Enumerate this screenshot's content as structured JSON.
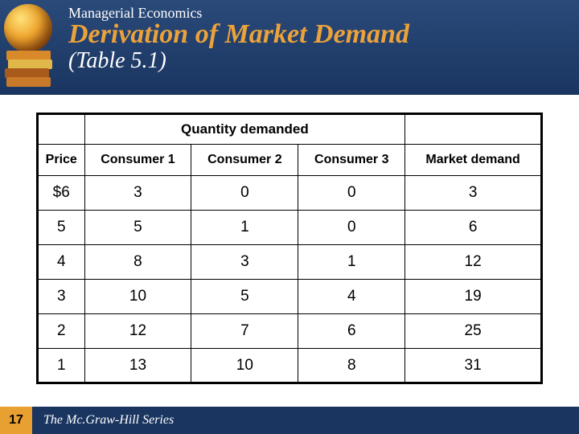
{
  "header": {
    "course": "Managerial Economics",
    "title": "Derivation of Market Demand",
    "subtitle": "(Table 5.1)"
  },
  "table": {
    "super_header": "Quantity demanded",
    "columns": [
      "Price",
      "Consumer 1",
      "Consumer 2",
      "Consumer 3",
      "Market demand"
    ],
    "rows": [
      [
        "$6",
        "3",
        "0",
        "0",
        "3"
      ],
      [
        "5",
        "5",
        "1",
        "0",
        "6"
      ],
      [
        "4",
        "8",
        "3",
        "1",
        "12"
      ],
      [
        "3",
        "10",
        "5",
        "4",
        "19"
      ],
      [
        "2",
        "12",
        "7",
        "6",
        "25"
      ],
      [
        "1",
        "13",
        "10",
        "8",
        "31"
      ]
    ],
    "colors": {
      "header_bg_top": "#2a4a7a",
      "header_bg_bottom": "#1a3560",
      "title_color": "#eca23a",
      "text_white": "#ffffff",
      "border": "#000000",
      "page_bg": "#ffffff",
      "badge_bg": "#e8a030"
    },
    "fonts": {
      "title_family": "Georgia, serif",
      "table_family": "Arial, sans-serif",
      "title_size_pt": 28,
      "subtitle_size_pt": 22,
      "super_header_size_pt": 13,
      "colhead_size_pt": 12,
      "cell_size_pt": 15
    }
  },
  "footer": {
    "page_number": "17",
    "series": "The Mc.Graw-Hill Series"
  }
}
